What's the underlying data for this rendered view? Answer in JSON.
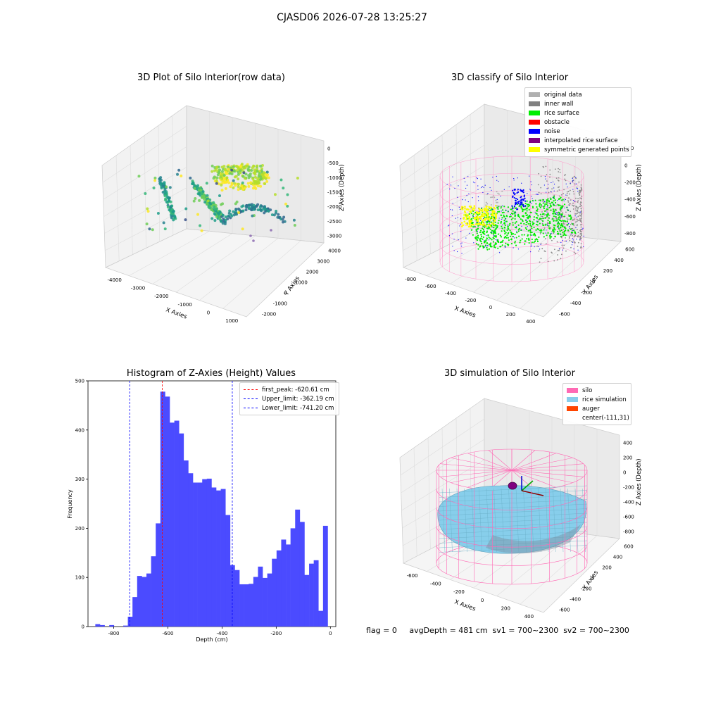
{
  "figure": {
    "suptitle": "CJASD06 2026-07-28 13:25:27",
    "status_line": "flag = 0     avgDepth = 481 cm  sv1 = 700~2300  sv2 = 700~2300"
  },
  "colors": {
    "silo": "#ff69b4",
    "rice_simulation": "#87ceeb",
    "auger": "#ff4500",
    "original_data": "#b0b0b0",
    "inner_wall": "#808080",
    "rice_surface": "#00ee00",
    "obstacle": "#ff0000",
    "noise": "#0000ff",
    "interpolated": "#800080",
    "symmetric": "#ffff00",
    "hist_bar": "#4b4bff"
  },
  "chart_data": [
    {
      "type": "scatter",
      "title": "3D Plot of Silo Interior(row data)",
      "projection": "3d",
      "xlabel": "X Axies",
      "ylabel": "Y Axies",
      "zlabel": "Z Axies (Depth)",
      "x_ticks": [
        "-4000",
        "-3000",
        "-2000",
        "-1000",
        "0",
        "1000"
      ],
      "y_ticks": [
        "-2000",
        "-1000",
        "0",
        "1000",
        "2000",
        "3000",
        "4000"
      ],
      "z_ticks": [
        "0",
        "-500",
        "-1000",
        "-1500",
        "-2000",
        "-2500",
        "-3000"
      ],
      "colormap": "viridis"
    },
    {
      "type": "scatter",
      "title": "3D classify of Silo Interior",
      "projection": "3d",
      "xlabel": "X Axies",
      "ylabel": "Y Axies",
      "zlabel": "Z Axies (Depth)",
      "x_ticks": [
        "-800",
        "-600",
        "-400",
        "-200",
        "0",
        "200",
        "400"
      ],
      "y_ticks": [
        "-600",
        "-400",
        "-200",
        "0",
        "200",
        "400",
        "600"
      ],
      "z_ticks": [
        "200",
        "0",
        "-200",
        "-400",
        "-600",
        "-800"
      ],
      "legend": [
        "original data",
        "inner wall",
        "rice surface",
        "obstacle",
        "noise",
        "interpolated rice surface",
        "symmetric generated points"
      ],
      "legend_position": "upper right"
    },
    {
      "type": "bar",
      "title": "Histogram of Z-Axies (Height) Values",
      "xlabel": "Depth (cm)",
      "ylabel": "Frequency",
      "xlim": [
        -895,
        20
      ],
      "ylim": [
        0,
        500
      ],
      "x_ticks": [
        "-800",
        "-600",
        "-400",
        "-200",
        "0"
      ],
      "y_ticks": [
        "0",
        "100",
        "200",
        "300",
        "400",
        "500"
      ],
      "bin_width": 17.16,
      "bin_start": -868,
      "values": [
        5,
        3,
        0,
        3,
        0,
        0,
        2,
        20,
        60,
        103,
        101,
        108,
        143,
        210,
        478,
        468,
        415,
        419,
        393,
        338,
        312,
        293,
        293,
        300,
        301,
        283,
        277,
        280,
        227,
        125,
        115,
        86,
        86,
        87,
        101,
        122,
        99,
        108,
        138,
        155,
        177,
        167,
        200,
        238,
        213,
        105,
        128,
        135,
        32,
        205
      ],
      "vlines": [
        {
          "label": "first_peak: -620.61 cm",
          "x": -620.61,
          "color": "#ff0000"
        },
        {
          "label": "Upper_limit: -362.19 cm",
          "x": -362.19,
          "color": "#0000ff"
        },
        {
          "label": "Lower_limit: -741.20 cm",
          "x": -741.2,
          "color": "#0000ff"
        }
      ],
      "legend_position": "upper right"
    },
    {
      "type": "surface",
      "title": "3D simulation of Silo Interior",
      "projection": "3d",
      "xlabel": "X Axies",
      "ylabel": "Y Axies",
      "zlabel": "Z Axies (Depth)",
      "x_ticks": [
        "-600",
        "-400",
        "-200",
        "0",
        "200",
        "400"
      ],
      "y_ticks": [
        "-600",
        "-400",
        "-200",
        "0",
        "200",
        "400",
        "600"
      ],
      "z_ticks": [
        "400",
        "200",
        "0",
        "-200",
        "-400",
        "-600",
        "-800"
      ],
      "legend": [
        "silo",
        "rice simulation",
        "auger",
        "center(-111,31)"
      ],
      "legend_position": "upper right"
    }
  ]
}
